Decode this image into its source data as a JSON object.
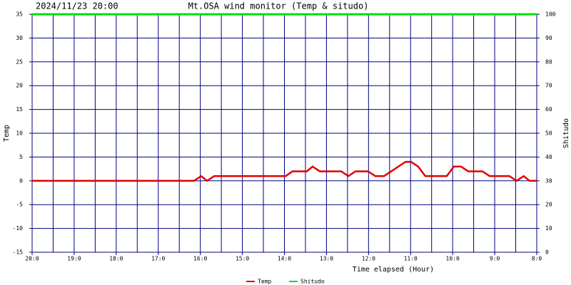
{
  "chart_data": {
    "type": "line",
    "title": "Mt.OSA wind monitor (Temp & situdo)",
    "subtitle": "2024/11/23 20:00",
    "x_label": "Time elapsed (Hour)",
    "y_label": "Temp",
    "y2_label": "Shitudo",
    "x": [
      0,
      3.85,
      4.02,
      4.16,
      4.33,
      6.03,
      6.19,
      6.53,
      6.67,
      6.84,
      7.35,
      7.52,
      7.69,
      7.99,
      8.16,
      8.37,
      8.54,
      8.71,
      8.88,
      9.01,
      9.18,
      9.35,
      9.86,
      10.03,
      10.2,
      10.37,
      10.71,
      10.88,
      11.35,
      11.52,
      11.69,
      11.83,
      12
    ],
    "series": [
      {
        "name": "Temp",
        "color": "#e00000",
        "values": [
          0,
          0,
          1,
          0,
          1,
          1,
          2,
          2,
          3,
          2,
          2,
          1,
          2,
          2,
          1,
          1,
          2,
          3,
          4,
          4,
          3,
          1,
          1,
          3,
          3,
          2,
          2,
          1,
          1,
          0,
          1,
          0,
          0
        ]
      },
      {
        "name": "Shitudo",
        "color": "#00e000",
        "axis": "y2",
        "values": [
          100,
          100,
          100,
          100,
          100,
          100,
          100,
          100,
          100,
          100,
          100,
          100,
          100,
          100,
          100,
          100,
          100,
          100,
          100,
          100,
          100,
          100,
          100,
          100,
          100,
          100,
          100,
          100,
          100,
          100,
          100,
          100,
          100
        ]
      }
    ],
    "xlim": [
      0,
      12
    ],
    "xticks": [
      {
        "value": 0,
        "label": "20:0"
      },
      {
        "value": 1,
        "label": "19:0"
      },
      {
        "value": 2,
        "label": "18:0"
      },
      {
        "value": 3,
        "label": "17:0"
      },
      {
        "value": 4,
        "label": "16:0"
      },
      {
        "value": 5,
        "label": "15:0"
      },
      {
        "value": 6,
        "label": "14:0"
      },
      {
        "value": 7,
        "label": "13:0"
      },
      {
        "value": 8,
        "label": "12:0"
      },
      {
        "value": 9,
        "label": "11:0"
      },
      {
        "value": 10,
        "label": "10:0"
      },
      {
        "value": 11,
        "label": "9:0"
      },
      {
        "value": 12,
        "label": "8:0"
      }
    ],
    "ylim": [
      -15,
      35
    ],
    "yticks": [
      -15,
      -10,
      -5,
      0,
      5,
      10,
      15,
      20,
      25,
      30,
      35
    ],
    "y2lim": [
      0,
      100
    ],
    "y2ticks": [
      0,
      10,
      20,
      30,
      40,
      50,
      60,
      70,
      80,
      90,
      100
    ],
    "grid": true,
    "grid_color": "#000080"
  }
}
